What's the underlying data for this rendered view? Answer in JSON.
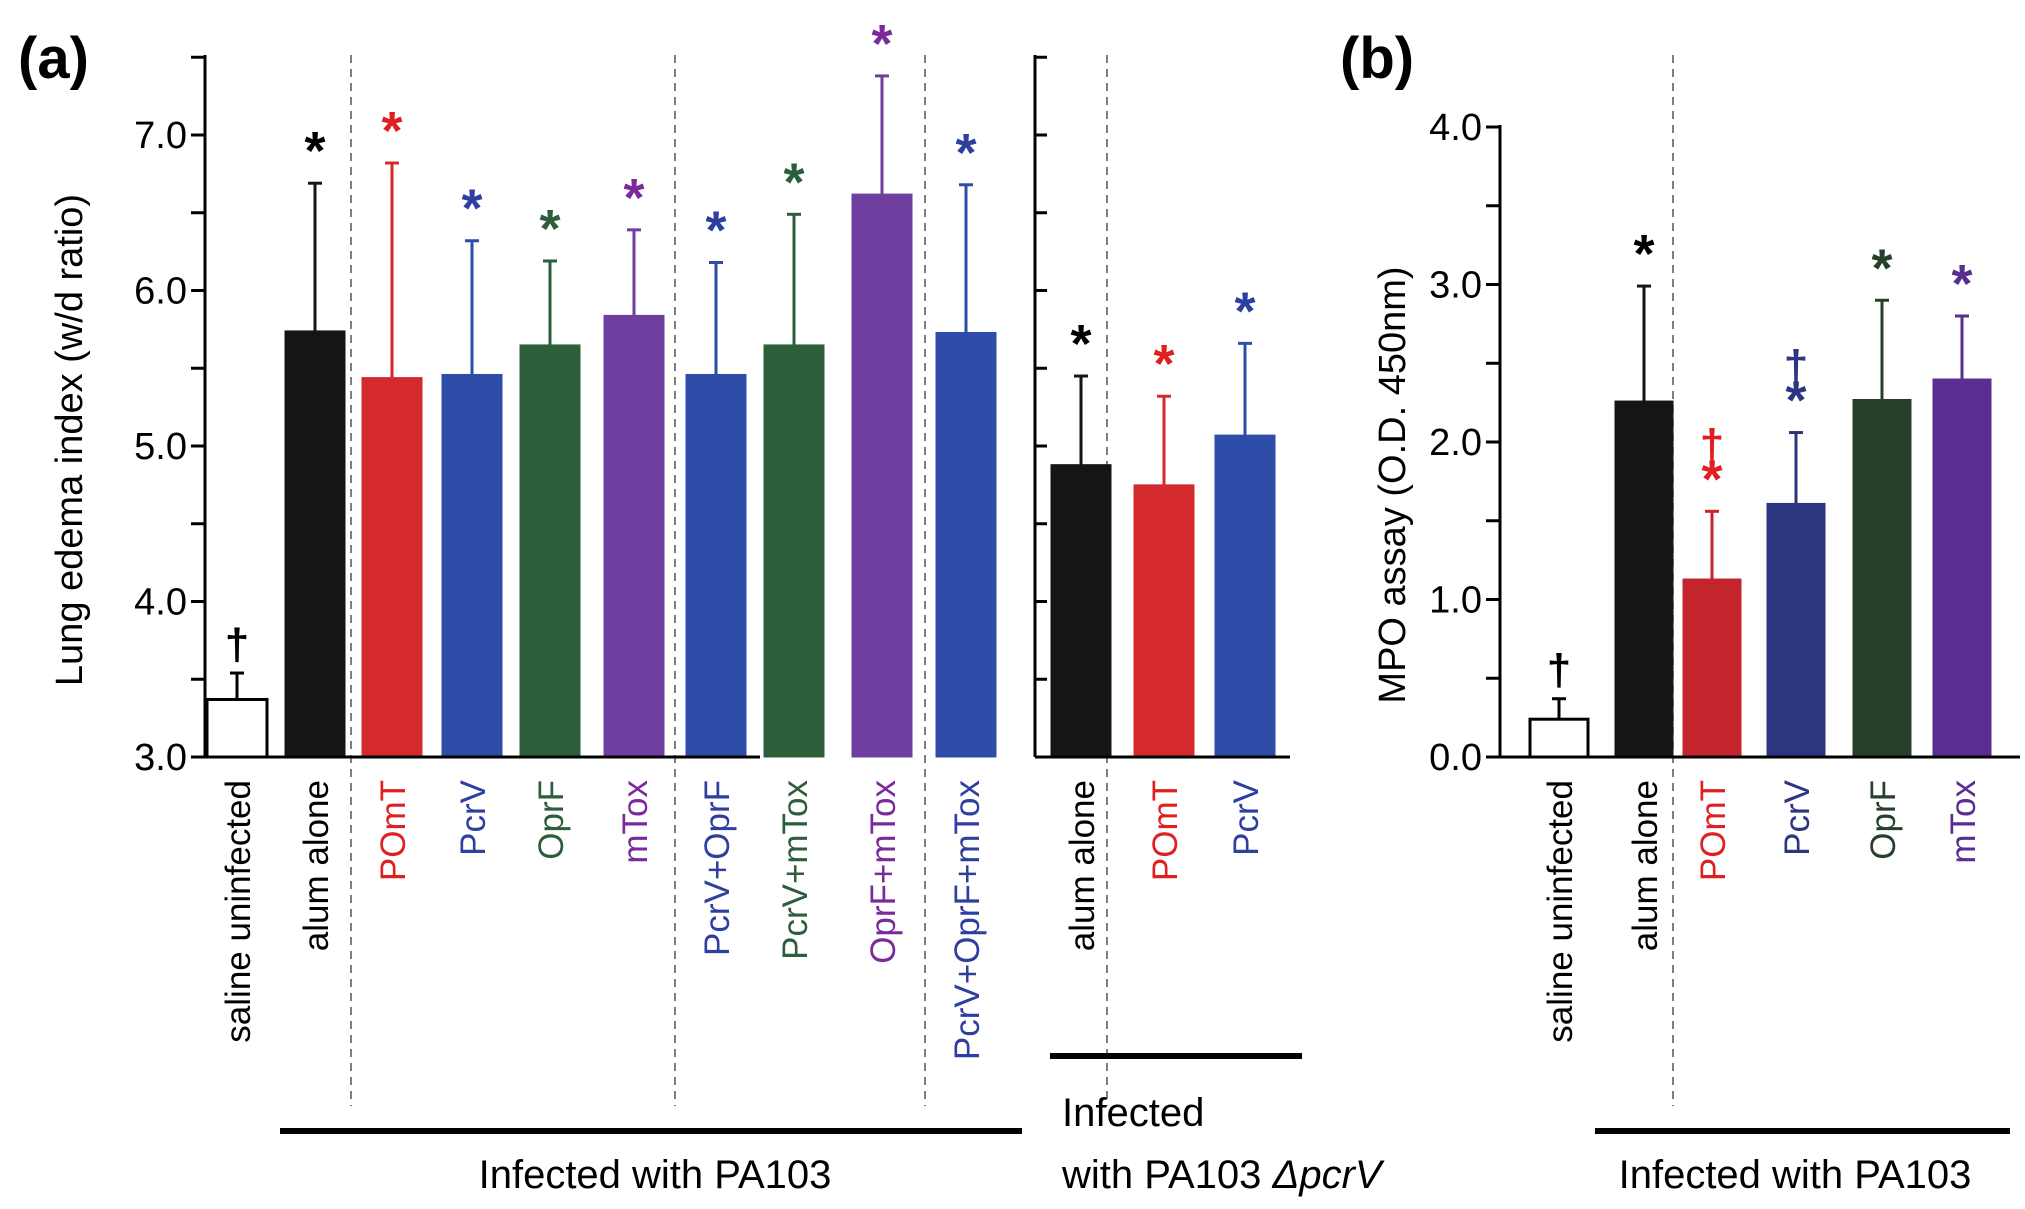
{
  "chart_data": [
    {
      "panel": "(a)",
      "type": "bar",
      "ylabel": "Lung edema index  (w/d ratio)",
      "ylim": [
        3.0,
        7.5
      ],
      "yticks": [
        "3.0",
        "4.0",
        "5.0",
        "6.0",
        "7.0"
      ],
      "categories": [
        "saline uninfected",
        "alum alone",
        "POmT",
        "PcrV",
        "OprF",
        "mTox",
        "PcrV+OprF",
        "PcrV+mTox",
        "OprF+mTox",
        "PcrV+OprF+mTox",
        "alum alone",
        "POmT",
        "PcrV"
      ],
      "values": [
        3.37,
        5.74,
        5.44,
        5.46,
        5.65,
        5.84,
        5.46,
        5.65,
        6.62,
        5.73,
        4.88,
        4.75,
        5.07
      ],
      "errors": [
        0.17,
        0.95,
        1.38,
        0.86,
        0.54,
        0.55,
        0.72,
        0.84,
        0.76,
        0.95,
        0.57,
        0.57,
        0.59
      ],
      "colors": [
        "#ffffff",
        "#151515",
        "#d42a2e",
        "#2e4da8",
        "#2d5e3a",
        "#6f3fa0",
        "#2e4da8",
        "#2d5e3a",
        "#6f3fa0",
        "#2e4da8",
        "#151515",
        "#d42a2e",
        "#2e4da8"
      ],
      "label_colors": [
        "#000000",
        "#000000",
        "#e02020",
        "#2e3fa0",
        "#2d5e3a",
        "#7a2a9a",
        "#2e3fa0",
        "#2d5e3a",
        "#7a2a9a",
        "#2e3fa0",
        "#000000",
        "#e02020",
        "#2e3fa0"
      ],
      "markers": [
        "†",
        "*",
        "*",
        "*",
        "*",
        "*",
        "*",
        "*",
        "*",
        "*",
        "*",
        "*",
        "*"
      ],
      "groups": [
        "Infected with PA103",
        "Infected",
        "with PA103 ",
        "ΔpcrV"
      ]
    },
    {
      "panel": "(b)",
      "type": "bar",
      "ylabel": "MPO assay  (O.D. 450nm)",
      "ylim": [
        0.0,
        4.0
      ],
      "yticks": [
        "0.0",
        "1.0",
        "2.0",
        "3.0",
        "4.0"
      ],
      "categories": [
        "saline uninfected",
        "alum alone",
        "POmT",
        "PcrV",
        "OprF",
        "mTox"
      ],
      "values": [
        0.24,
        2.26,
        1.13,
        1.61,
        2.27,
        2.4
      ],
      "errors": [
        0.13,
        0.73,
        0.43,
        0.45,
        0.63,
        0.4
      ],
      "colors": [
        "#ffffff",
        "#151515",
        "#c4242c",
        "#2c3580",
        "#26402a",
        "#5a2d90"
      ],
      "label_colors": [
        "#000000",
        "#000000",
        "#e02020",
        "#2c3580",
        "#26402a",
        "#5a2d90"
      ],
      "markers": [
        "†",
        "*",
        "†*",
        "†*",
        "*",
        "*"
      ],
      "groups": [
        "Infected with PA103"
      ]
    }
  ]
}
